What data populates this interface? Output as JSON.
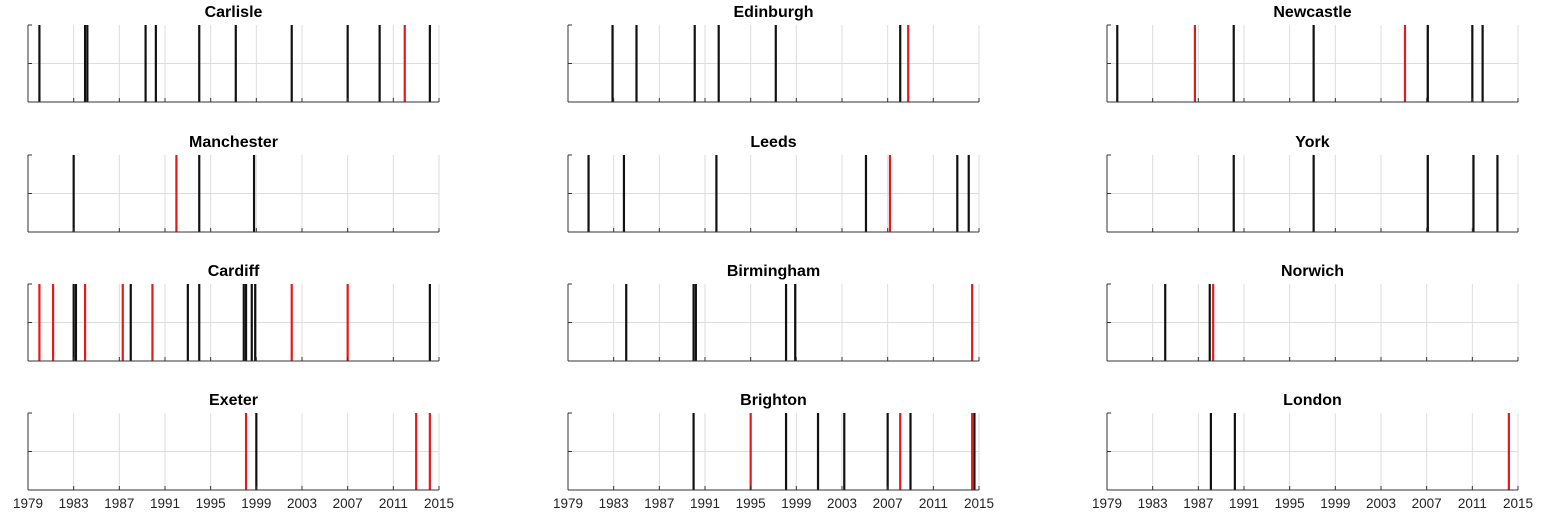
{
  "chart_data": {
    "type": "event-lines",
    "xlim": [
      1979,
      2015
    ],
    "x_ticks": [
      1979,
      1983,
      1987,
      1991,
      1995,
      1999,
      2003,
      2007,
      2011,
      2015
    ],
    "x_tick_labels": [
      "1979",
      "1983",
      "1987",
      "1991",
      "1995",
      "1999",
      "2003",
      "2007",
      "2011",
      "2015"
    ],
    "grid": true,
    "colors": {
      "black_event": "#111111",
      "red_event": "#e41a1c",
      "grid": "#dddddd",
      "axis": "#333333"
    },
    "panels": [
      {
        "title": "Carlisle",
        "black": [
          1980,
          1984,
          1984.2,
          1989.3,
          1990.2,
          1994,
          1997.2,
          2002.1,
          2007,
          2009.8,
          2014.2
        ],
        "red": [
          2012
        ],
        "show_xticks": false
      },
      {
        "title": "Edinburgh",
        "black": [
          1982.9,
          1985,
          1990.1,
          1992.2,
          1997.2,
          2008.1
        ],
        "red": [
          2008.8
        ],
        "show_xticks": false
      },
      {
        "title": "Newcastle",
        "black": [
          1979.9,
          1990.1,
          1997.1,
          2007.1,
          2011,
          2011.9
        ],
        "red": [
          1986.7,
          2005.1
        ],
        "show_xticks": false
      },
      {
        "title": "Manchester",
        "black": [
          1983,
          1994,
          1998.8
        ],
        "red": [
          1992
        ],
        "show_xticks": false
      },
      {
        "title": "Leeds",
        "black": [
          1980.8,
          1983.9,
          1992,
          2005.1,
          2013.1,
          2014.1
        ],
        "red": [
          2007.2
        ],
        "show_xticks": false
      },
      {
        "title": "York",
        "black": [
          1990.1,
          1997.1,
          2007.1,
          2011.1,
          2013.2
        ],
        "red": [],
        "show_xticks": false
      },
      {
        "title": "Cardiff",
        "black": [
          1983,
          1983.2,
          1988,
          1993,
          1994,
          1997.9,
          1998.1,
          1998.6,
          1998.9,
          2014.2
        ],
        "red": [
          1980,
          1981.2,
          1984,
          1987.3,
          1989.9,
          2002.1,
          2007
        ],
        "show_xticks": false
      },
      {
        "title": "Birmingham",
        "black": [
          1984.1,
          1990,
          1990.2,
          1998.1,
          1998.9
        ],
        "red": [
          2014.4
        ],
        "show_xticks": false
      },
      {
        "title": "Norwich",
        "black": [
          1984.1,
          1988
        ],
        "red": [
          1988.3
        ],
        "show_xticks": false
      },
      {
        "title": "Exeter",
        "black": [
          1999
        ],
        "red": [
          1998.1,
          2013,
          2014.2
        ],
        "show_xticks": true
      },
      {
        "title": "Brighton",
        "black": [
          1990,
          1998.1,
          2000.9,
          2003.2,
          2007,
          2009,
          2014.6
        ],
        "red": [
          1995,
          2008.1,
          2014.4
        ],
        "show_xticks": true
      },
      {
        "title": "London",
        "black": [
          1988.1,
          1990.2
        ],
        "red": [
          2014.2
        ],
        "show_xticks": true
      }
    ]
  }
}
